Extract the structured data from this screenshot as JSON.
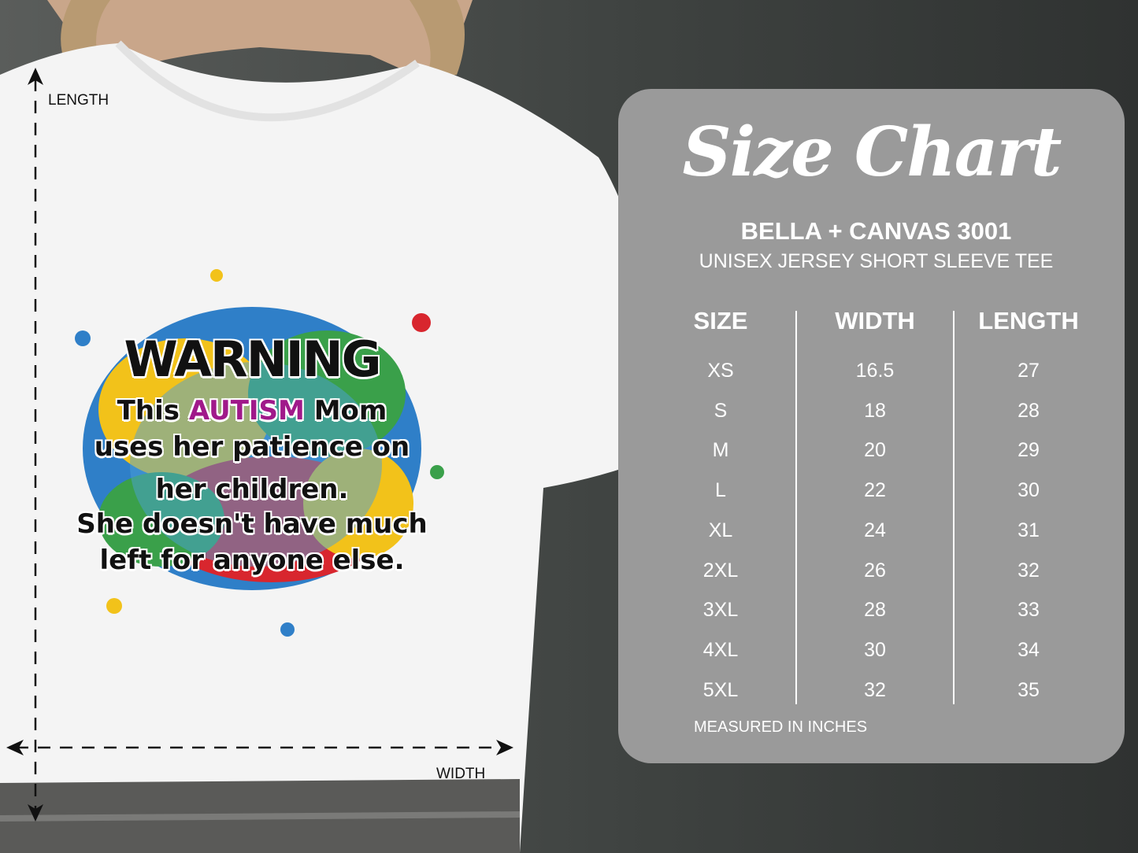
{
  "diagram": {
    "length_label": "LENGTH",
    "width_label": "WIDTH"
  },
  "print": {
    "line1": "WARNING",
    "line2_pre": "This ",
    "line2_em": "AUTISM",
    "line2_post": " Mom",
    "line3": "uses her patience on",
    "line4": "her children.",
    "line5": "She doesn't have much",
    "line6": "left for anyone else."
  },
  "panel": {
    "title": "Size Chart",
    "brand": "BELLA + CANVAS 3001",
    "product": "UNISEX JERSEY SHORT SLEEVE TEE",
    "headers": [
      "SIZE",
      "WIDTH",
      "LENGTH"
    ],
    "rows": [
      [
        "XS",
        "16.5",
        "27"
      ],
      [
        "S",
        "18",
        "28"
      ],
      [
        "M",
        "20",
        "29"
      ],
      [
        "L",
        "22",
        "30"
      ],
      [
        "XL",
        "24",
        "31"
      ],
      [
        "2XL",
        "26",
        "32"
      ],
      [
        "3XL",
        "28",
        "33"
      ],
      [
        "4XL",
        "30",
        "34"
      ],
      [
        "5XL",
        "32",
        "35"
      ]
    ],
    "note": "MEASURED IN INCHES"
  },
  "colors": {
    "panel": "#9a9a9a",
    "shirt": "#f4f4f4",
    "accent_text": "#a0198a"
  }
}
